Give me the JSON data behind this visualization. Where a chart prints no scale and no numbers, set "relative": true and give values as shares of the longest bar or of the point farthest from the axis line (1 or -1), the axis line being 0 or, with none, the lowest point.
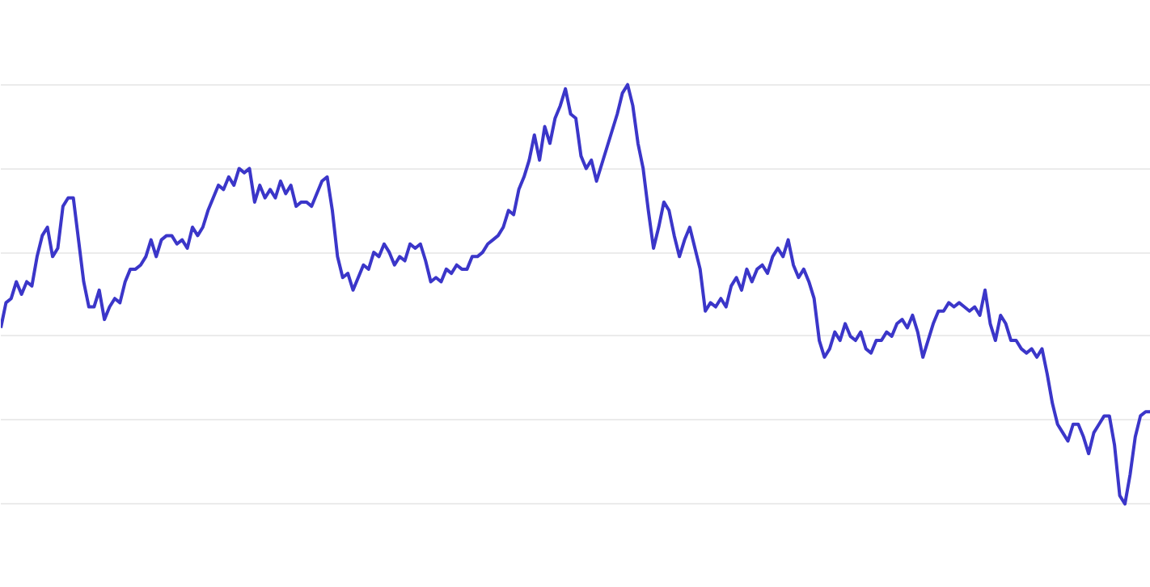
{
  "chart_data": {
    "type": "line",
    "relative": true,
    "grid": "y",
    "color": "#3b36c9",
    "categories": [
      null,
      null,
      null,
      null,
      null,
      null,
      null,
      null,
      null,
      null,
      null,
      null,
      null,
      null,
      null,
      null,
      null,
      null,
      null,
      null,
      null,
      null,
      null,
      null,
      null,
      null,
      null,
      null,
      null,
      null,
      null,
      null,
      null,
      null,
      null,
      null,
      null,
      null,
      null,
      null,
      null,
      null,
      null,
      null,
      null,
      null,
      null,
      null,
      null,
      null,
      null,
      null,
      null,
      null,
      null,
      null,
      null,
      null,
      null,
      null,
      null,
      null,
      null,
      null,
      null,
      null,
      null,
      null,
      null,
      null,
      null,
      null,
      null,
      null,
      null,
      null,
      null,
      null,
      null,
      null,
      null,
      null,
      null,
      null,
      null,
      null,
      null,
      null,
      null,
      null,
      null,
      null,
      null,
      null,
      null,
      null,
      null,
      null,
      null,
      null,
      null,
      null,
      null,
      null,
      null,
      null,
      null,
      null,
      null,
      null,
      null,
      null,
      null,
      null,
      null,
      null,
      null,
      null,
      null,
      null,
      null,
      null,
      null,
      null,
      null,
      null,
      null,
      null,
      null,
      null,
      null,
      null,
      null,
      null,
      null,
      null,
      null,
      null,
      null,
      null,
      null,
      null,
      null,
      null,
      null,
      null,
      null,
      null,
      null,
      null,
      null,
      null,
      null,
      null,
      null,
      null,
      null,
      null,
      null,
      null,
      null,
      null,
      null,
      null,
      null,
      null,
      null,
      null,
      null,
      null,
      null,
      null,
      null,
      null,
      null,
      null,
      null,
      null,
      null,
      null,
      null,
      null,
      null,
      null,
      null,
      null,
      null,
      null,
      null,
      null,
      null,
      null,
      null,
      null,
      null,
      null,
      null,
      null,
      null,
      null,
      null,
      null,
      null,
      null,
      null,
      null,
      null,
      null,
      null,
      null,
      null,
      null,
      null,
      null,
      null,
      null,
      null,
      null,
      null,
      null,
      null,
      null,
      null
    ],
    "values": [
      0.42,
      0.48,
      0.49,
      0.53,
      0.5,
      0.53,
      0.52,
      0.59,
      0.64,
      0.66,
      0.59,
      0.61,
      0.71,
      0.73,
      0.73,
      0.63,
      0.53,
      0.47,
      0.47,
      0.51,
      0.44,
      0.47,
      0.49,
      0.48,
      0.53,
      0.56,
      0.56,
      0.57,
      0.59,
      0.63,
      0.59,
      0.63,
      0.64,
      0.64,
      0.62,
      0.63,
      0.61,
      0.66,
      0.64,
      0.66,
      0.7,
      0.73,
      0.76,
      0.75,
      0.78,
      0.76,
      0.8,
      0.79,
      0.8,
      0.72,
      0.76,
      0.73,
      0.75,
      0.73,
      0.77,
      0.74,
      0.76,
      0.71,
      0.72,
      0.72,
      0.71,
      0.74,
      0.77,
      0.78,
      0.7,
      0.59,
      0.54,
      0.55,
      0.51,
      0.54,
      0.57,
      0.56,
      0.6,
      0.59,
      0.62,
      0.6,
      0.57,
      0.59,
      0.58,
      0.62,
      0.61,
      0.62,
      0.58,
      0.53,
      0.54,
      0.53,
      0.56,
      0.55,
      0.57,
      0.56,
      0.56,
      0.59,
      0.59,
      0.6,
      0.62,
      0.63,
      0.64,
      0.66,
      0.7,
      0.69,
      0.75,
      0.78,
      0.82,
      0.88,
      0.82,
      0.9,
      0.86,
      0.92,
      0.95,
      0.99,
      0.93,
      0.92,
      0.83,
      0.8,
      0.82,
      0.77,
      0.81,
      0.85,
      0.89,
      0.93,
      0.98,
      1,
      0.95,
      0.86,
      0.8,
      0.7,
      0.61,
      0.66,
      0.72,
      0.7,
      0.64,
      0.59,
      0.63,
      0.66,
      0.61,
      0.56,
      0.46,
      0.48,
      0.47,
      0.49,
      0.47,
      0.52,
      0.54,
      0.51,
      0.56,
      0.53,
      0.56,
      0.57,
      0.55,
      0.59,
      0.61,
      0.59,
      0.63,
      0.57,
      0.54,
      0.56,
      0.53,
      0.49,
      0.39,
      0.35,
      0.37,
      0.41,
      0.39,
      0.43,
      0.4,
      0.39,
      0.41,
      0.37,
      0.36,
      0.39,
      0.39,
      0.41,
      0.4,
      0.43,
      0.44,
      0.42,
      0.45,
      0.41,
      0.35,
      0.39,
      0.43,
      0.46,
      0.46,
      0.48,
      0.47,
      0.48,
      0.47,
      0.46,
      0.47,
      0.45,
      0.51,
      0.43,
      0.39,
      0.45,
      0.43,
      0.39,
      0.39,
      0.37,
      0.36,
      0.37,
      0.35,
      0.37,
      0.31,
      0.24,
      0.19,
      0.17,
      0.15,
      0.19,
      0.19,
      0.16,
      0.12,
      0.17,
      0.19,
      0.21,
      0.21,
      0.14,
      0.02,
      0,
      0.07,
      0.16,
      0.21,
      0.22,
      0.22
    ]
  }
}
